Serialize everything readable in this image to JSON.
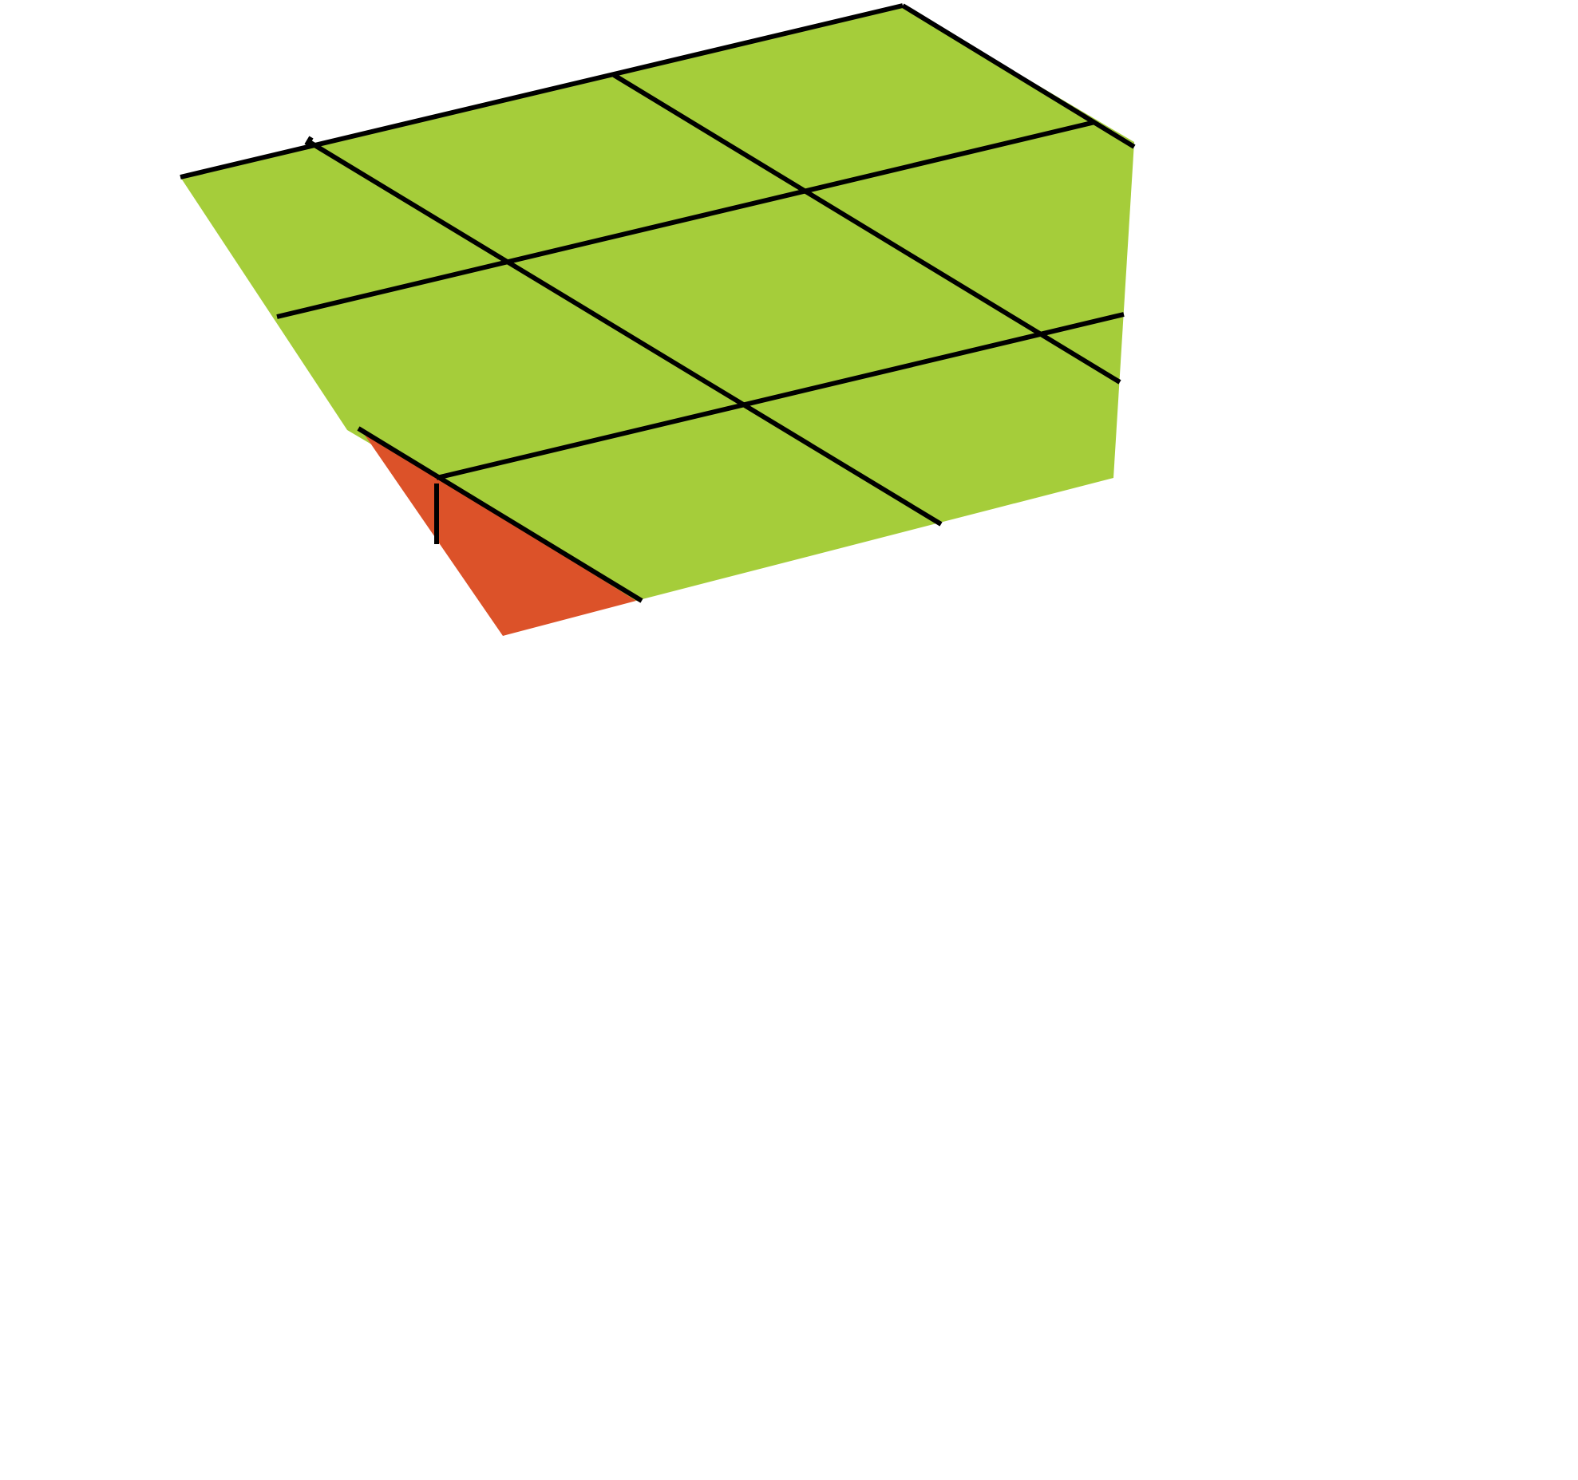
{
  "diagram": {
    "description_free": true,
    "colors": {
      "background": "#ffffff",
      "main_face": "#a5cd3a",
      "corner_face": "#dc5229",
      "grid_line": "#000000"
    },
    "grid": {
      "rows": 3,
      "columns": 3
    }
  }
}
